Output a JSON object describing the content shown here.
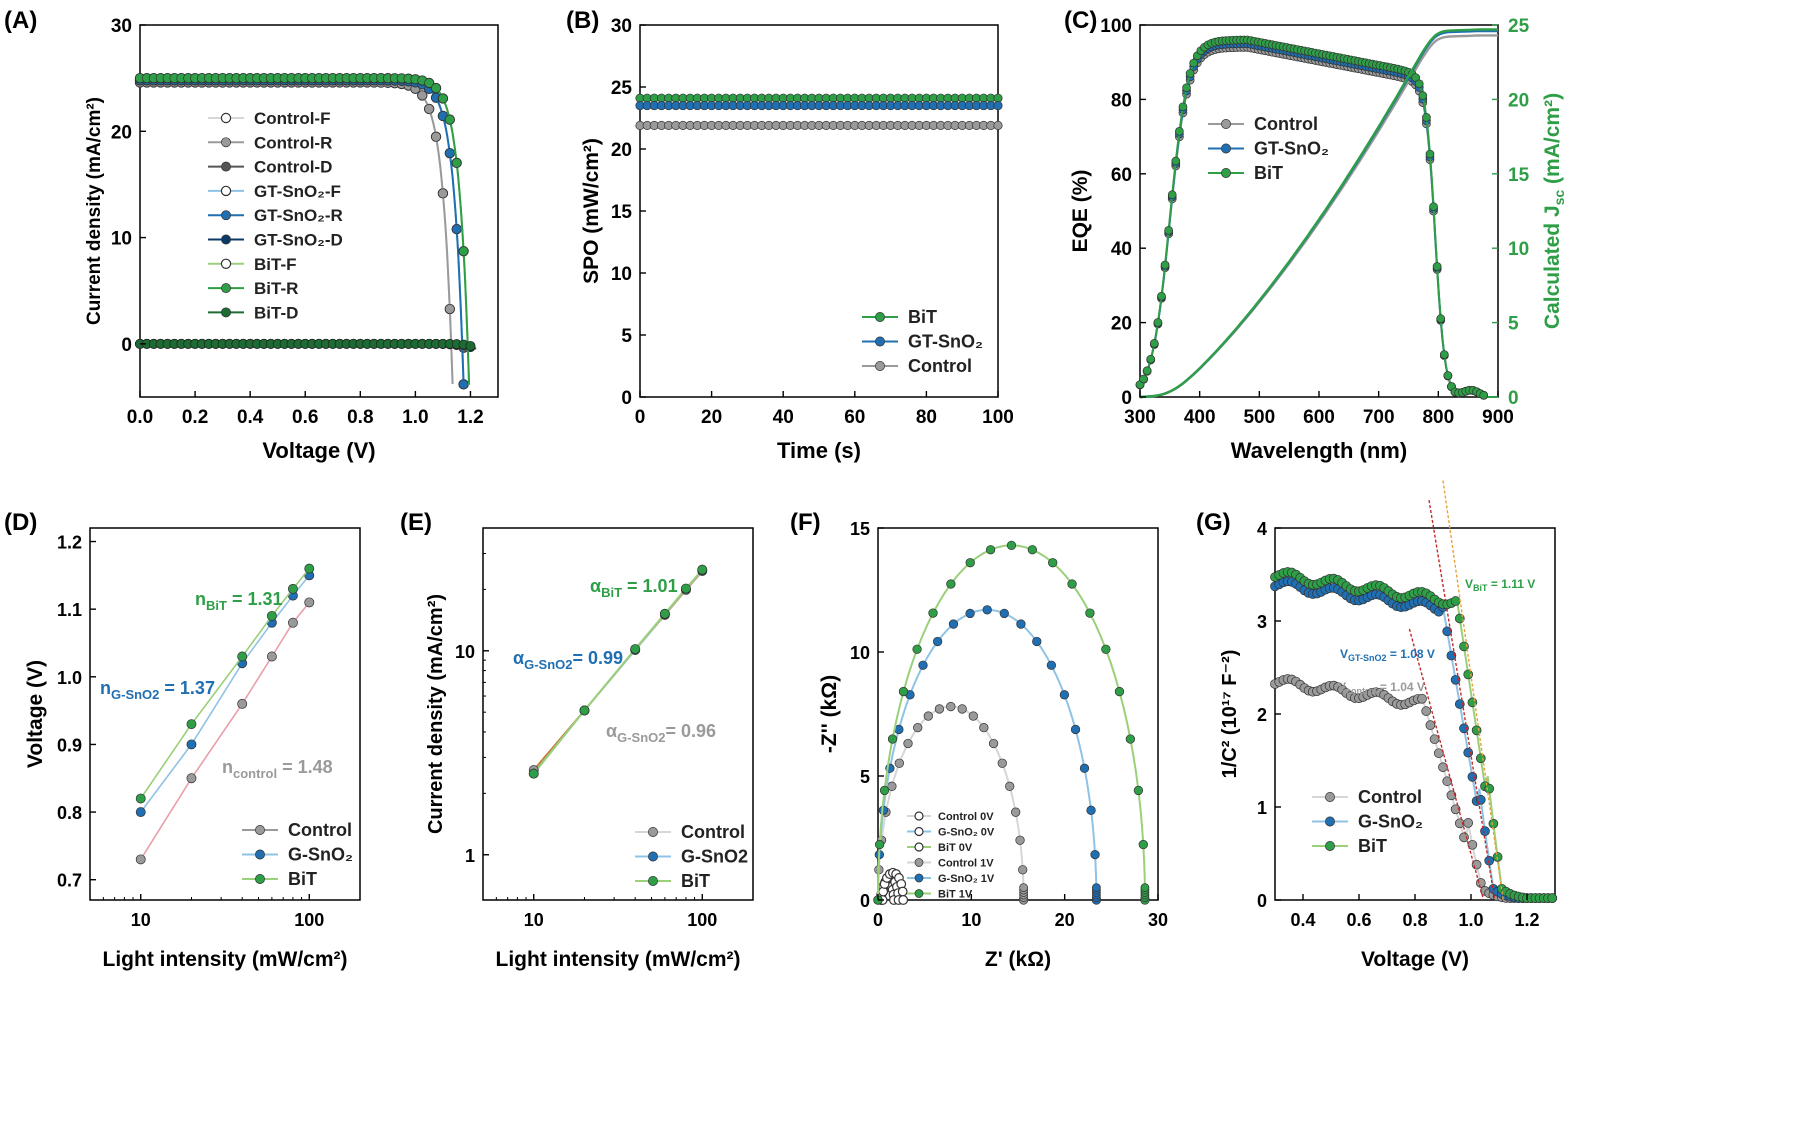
{
  "colors": {
    "control": "#9a9a9a",
    "control_dark": "#555555",
    "control_light": "#d6d6d6",
    "gt": "#1f6fb2",
    "gt_dark": "#0b3a66",
    "gt_light": "#8fc3e6",
    "bit": "#2e9e47",
    "bit_dark": "#1b6b33",
    "bit_light": "#9ad07a",
    "fit_red": "#c62828",
    "fit_orange": "#e8a33a"
  },
  "chart_data": [
    {
      "id": "A",
      "panel_label": "(A)",
      "type": "line",
      "xlabel": "Voltage (V)",
      "ylabel": "Current density (mA/cm²)",
      "xlim": [
        0,
        1.3
      ],
      "ylim": [
        -5,
        30
      ],
      "xticks": [
        "0.0",
        "0.2",
        "0.4",
        "0.6",
        "0.8",
        "1.0",
        "1.2"
      ],
      "yticks": [
        "0",
        "10",
        "20",
        "30"
      ],
      "legend": [
        "Control-F",
        "Control-R",
        "Control-D",
        "GT-SnO₂-F",
        "GT-SnO₂-R",
        "GT-SnO₂-D",
        "BiT-F",
        "BiT-R",
        "BiT-D"
      ],
      "series": [
        {
          "name": "Control-F",
          "jsc": 24.6,
          "voc": 1.13,
          "n": 8
        },
        {
          "name": "Control-R",
          "jsc": 24.6,
          "voc": 1.13,
          "n": 8
        },
        {
          "name": "Control-D",
          "dark": true,
          "voc": 1.13
        },
        {
          "name": "GT-SnO₂-F",
          "jsc": 24.8,
          "voc": 1.17,
          "n": 9
        },
        {
          "name": "GT-SnO₂-R",
          "jsc": 24.8,
          "voc": 1.17,
          "n": 9
        },
        {
          "name": "GT-SnO₂-D",
          "dark": true,
          "voc": 1.16
        },
        {
          "name": "BiT-F",
          "jsc": 25.0,
          "voc": 1.19,
          "n": 10
        },
        {
          "name": "BiT-R",
          "jsc": 25.0,
          "voc": 1.19,
          "n": 10
        },
        {
          "name": "BiT-D",
          "dark": true,
          "voc": 1.17
        }
      ]
    },
    {
      "id": "B",
      "panel_label": "(B)",
      "type": "line",
      "xlabel": "Time (s)",
      "ylabel": "SPO (mW/cm²)",
      "xlim": [
        0,
        100
      ],
      "ylim": [
        0,
        30
      ],
      "xticks": [
        "0",
        "20",
        "40",
        "60",
        "80",
        "100"
      ],
      "yticks": [
        "0",
        "5",
        "10",
        "15",
        "20",
        "25",
        "30"
      ],
      "legend": [
        "BiT",
        "GT-SnO₂",
        "Control"
      ],
      "series": [
        {
          "name": "BiT",
          "value": 24.1
        },
        {
          "name": "GT-SnO₂",
          "value": 23.5
        },
        {
          "name": "Control",
          "value": 21.9
        }
      ]
    },
    {
      "id": "C",
      "panel_label": "(C)",
      "type": "line",
      "xlabel": "Wavelength (nm)",
      "ylabel": "EQE (%)",
      "ylabel_right": "Calculated J",
      "ylabel_right_sub": "sc",
      "ylabel_right_unit": " (mA/cm²)",
      "xlim": [
        300,
        900
      ],
      "ylim": [
        0,
        100
      ],
      "ylim_right": [
        0,
        25
      ],
      "xticks": [
        "300",
        "400",
        "500",
        "600",
        "700",
        "800",
        "900"
      ],
      "yticks": [
        "0",
        "20",
        "40",
        "60",
        "80",
        "100"
      ],
      "yticks_right": [
        "0",
        "5",
        "10",
        "15",
        "20",
        "25"
      ],
      "legend": [
        "Control",
        "GT-SnO₂",
        "BiT"
      ],
      "series": [
        {
          "name": "Control",
          "eqe_peak": 94,
          "eqe_edge": 85,
          "jsc": 24.3
        },
        {
          "name": "GT-SnO₂",
          "eqe_peak": 95,
          "eqe_edge": 86,
          "jsc": 24.6
        },
        {
          "name": "BiT",
          "eqe_peak": 96,
          "eqe_edge": 87,
          "jsc": 24.7
        }
      ]
    },
    {
      "id": "D",
      "panel_label": "(D)",
      "type": "scatter",
      "xlabel": "Light intensity (mW/cm²)",
      "ylabel": "Voltage (V)",
      "xscale": "log",
      "xlim": [
        5,
        200
      ],
      "ylim": [
        0.67,
        1.22
      ],
      "xticks": [
        "10",
        "100"
      ],
      "yticks": [
        "0.7",
        "0.8",
        "0.9",
        "1.0",
        "1.1",
        "1.2"
      ],
      "x": [
        10,
        20,
        40,
        60,
        80,
        100
      ],
      "legend": [
        "Control",
        "G-SnO₂",
        "BiT"
      ],
      "series": [
        {
          "name": "Control",
          "values": [
            0.73,
            0.85,
            0.96,
            1.03,
            1.08,
            1.11
          ]
        },
        {
          "name": "G-SnO₂",
          "values": [
            0.8,
            0.9,
            1.02,
            1.08,
            1.12,
            1.15
          ]
        },
        {
          "name": "BiT",
          "values": [
            0.82,
            0.93,
            1.03,
            1.09,
            1.13,
            1.16
          ]
        }
      ],
      "annotations": [
        {
          "main": "n",
          "sub": "BiT",
          "rest": " = 1.31"
        },
        {
          "main": "n",
          "sub": "G-SnO2",
          "rest": " = 1.37"
        },
        {
          "main": "n",
          "sub": "control",
          "rest": " = 1.48"
        }
      ]
    },
    {
      "id": "E",
      "panel_label": "(E)",
      "type": "scatter",
      "xlabel": "Light intensity (mW/cm²)",
      "ylabel": "Current density (mA/cm²)",
      "xscale": "log",
      "yscale": "log",
      "xlim": [
        5,
        200
      ],
      "ylim": [
        0.6,
        40
      ],
      "xticks": [
        "10",
        "100"
      ],
      "yticks": [
        "1",
        "10"
      ],
      "x": [
        10,
        20,
        40,
        60,
        80,
        100
      ],
      "legend": [
        "Control",
        "G-SnO2",
        "BiT"
      ],
      "series": [
        {
          "name": "Control",
          "values": [
            2.6,
            5.1,
            10.1,
            15.0,
            19.9,
            24.6
          ]
        },
        {
          "name": "G-SnO2",
          "values": [
            2.5,
            5.1,
            10.1,
            15.1,
            20.1,
            24.8
          ]
        },
        {
          "name": "BiT",
          "values": [
            2.5,
            5.1,
            10.2,
            15.2,
            20.2,
            25.0
          ]
        }
      ],
      "annotations": [
        {
          "main": "α",
          "sub": "BiT",
          "rest": " = 1.01"
        },
        {
          "main": "α",
          "sub": "G-SnO2",
          "rest": "= 0.99"
        },
        {
          "main": "α",
          "sub": "G-SnO2",
          "rest": "= 0.96"
        }
      ]
    },
    {
      "id": "F",
      "panel_label": "(F)",
      "type": "scatter",
      "xlabel": "Z' (kΩ)",
      "ylabel": "-Z'' (kΩ)",
      "xlim": [
        0,
        30
      ],
      "ylim": [
        0,
        15
      ],
      "xticks": [
        "0",
        "10",
        "20",
        "30"
      ],
      "yticks": [
        "0",
        "5",
        "10",
        "15"
      ],
      "legend": [
        "Control 0V",
        "G-SnO₂ 0V",
        "BiT 0V",
        "Control 1V",
        "G-SnO₂ 1V",
        "BiT 1V"
      ],
      "series": [
        {
          "name": "Control 0V",
          "r": 0.7,
          "cx": 1.0
        },
        {
          "name": "G-SnO₂ 0V",
          "r": 0.9,
          "cx": 1.3
        },
        {
          "name": "BiT 0V",
          "r": 1.1,
          "cx": 1.6
        },
        {
          "name": "Control 1V",
          "r": 7.8,
          "cx": 7.8
        },
        {
          "name": "G-SnO₂ 1V",
          "r": 11.7,
          "cx": 11.7
        },
        {
          "name": "BiT 1V",
          "r": 14.3,
          "cx": 14.3
        }
      ]
    },
    {
      "id": "G",
      "panel_label": "(G)",
      "type": "scatter",
      "xlabel": "Voltage (V)",
      "ylabel": "1/C² (10¹⁷ F⁻²)",
      "xlim": [
        0.3,
        1.3
      ],
      "ylim": [
        0,
        4
      ],
      "xticks": [
        "0.4",
        "0.6",
        "0.8",
        "1.0",
        "1.2"
      ],
      "yticks": [
        "0",
        "1",
        "2",
        "3",
        "4"
      ],
      "legend": [
        "Control",
        "G-SnO₂",
        "BiT"
      ],
      "series": [
        {
          "name": "Control",
          "plateau": 2.35,
          "knee": 0.83,
          "vbi": 1.04
        },
        {
          "name": "G-SnO₂",
          "plateau": 3.4,
          "knee": 0.9,
          "vbi": 1.08
        },
        {
          "name": "BiT",
          "plateau": 3.5,
          "knee": 0.95,
          "vbi": 1.11
        }
      ],
      "annotations": [
        {
          "main": "V",
          "sub": "BiT",
          "rest": " = 1.11 V"
        },
        {
          "main": "V",
          "sub": "GT-SnO2",
          "rest": " = 1.08 V"
        },
        {
          "main": "V",
          "sub": "control",
          "rest": " = 1.04 V"
        }
      ]
    }
  ]
}
